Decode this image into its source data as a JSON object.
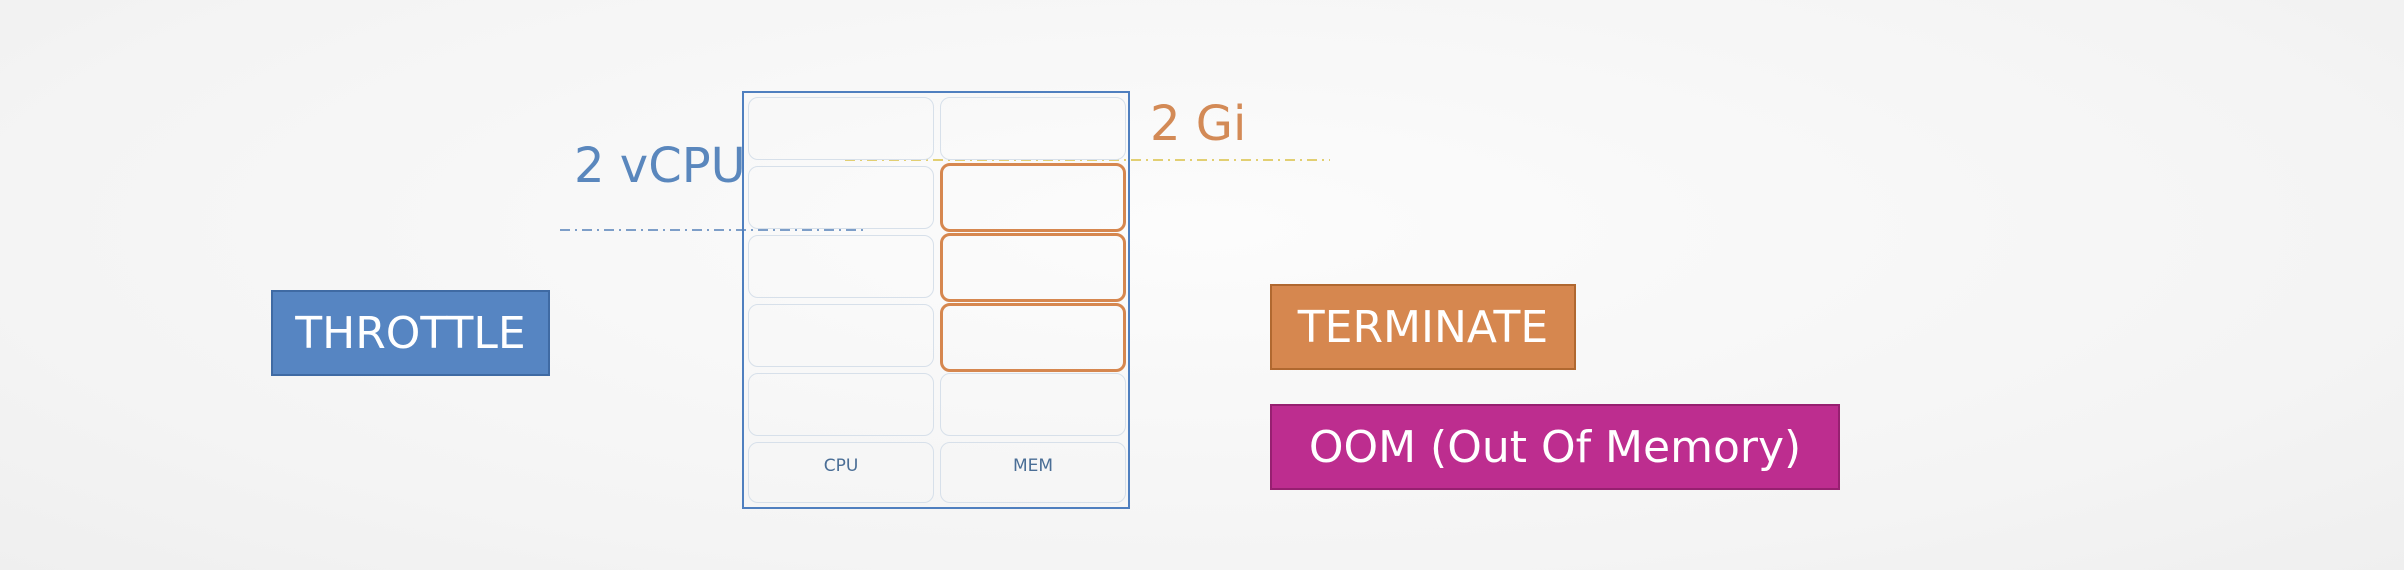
{
  "limits": {
    "cpu": "2 vCPU",
    "memory": "2 Gi"
  },
  "grid": {
    "columns": [
      "CPU",
      "MEM"
    ],
    "rows": 6,
    "memory_used_cells": 3
  },
  "actions": {
    "cpu_exceeded": "THROTTLE",
    "memory_exceeded": "TERMINATE",
    "memory_error": "OOM (Out Of Memory)"
  },
  "colors": {
    "cpu": "#5685c2",
    "memory": "#d6874f",
    "oom": "#bd2d8f",
    "frame": "#4f7fbf"
  }
}
